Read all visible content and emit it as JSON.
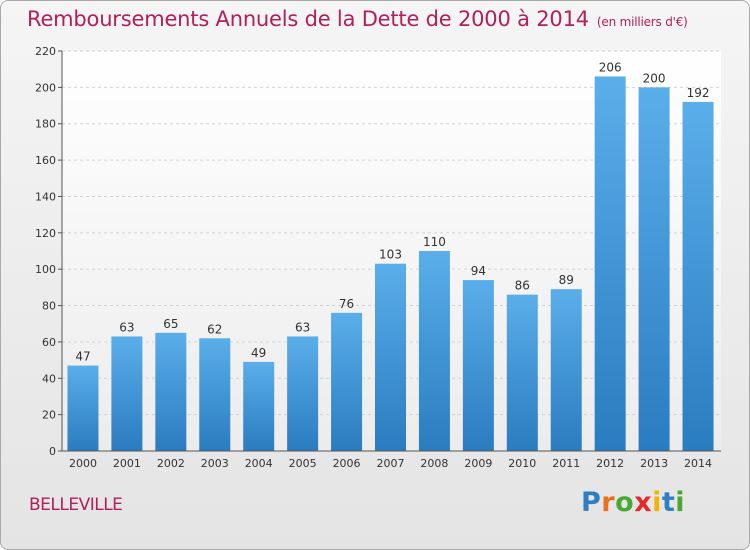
{
  "header": {
    "title": "Remboursements Annuels de la Dette de 2000 à 2014",
    "subtitle": "(en milliers d'€)"
  },
  "footer": {
    "commune": "BELLEVILLE",
    "logo": {
      "letters": [
        "P",
        "r",
        "o",
        "x",
        "i",
        "t",
        "i"
      ],
      "colors": [
        "#2d7fc1",
        "#e8701e",
        "#4aa832",
        "#e22a28",
        "#f2b400",
        "#2d7fc1",
        "#4aa832"
      ]
    }
  },
  "chart_data": {
    "type": "bar",
    "title": "Remboursements Annuels de la Dette de 2000 à 2014",
    "xlabel": "",
    "ylabel": "",
    "categories": [
      "2000",
      "2001",
      "2002",
      "2003",
      "2004",
      "2005",
      "2006",
      "2007",
      "2008",
      "2009",
      "2010",
      "2011",
      "2012",
      "2013",
      "2014"
    ],
    "values": [
      47,
      63,
      65,
      62,
      49,
      63,
      76,
      103,
      110,
      94,
      86,
      89,
      206,
      200,
      192
    ],
    "ylim": [
      0,
      220
    ],
    "yticks": [
      0,
      20,
      40,
      60,
      80,
      100,
      120,
      140,
      160,
      180,
      200,
      220
    ],
    "grid": true,
    "bar_color": "#4a9fdf"
  }
}
